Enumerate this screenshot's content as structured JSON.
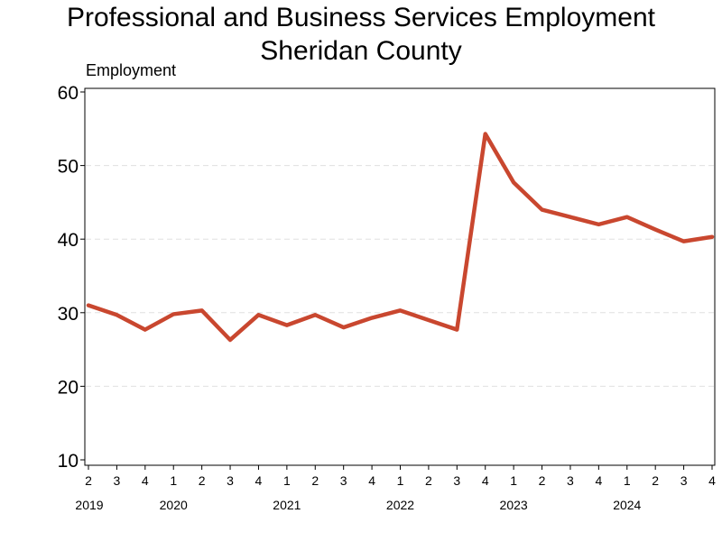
{
  "chart_data": {
    "type": "line",
    "title": "Professional and Business Services Employment",
    "subtitle": "Sheridan County",
    "ylabel": "Employment",
    "ylim": [
      10,
      60
    ],
    "yticks": [
      10,
      20,
      30,
      40,
      50,
      60
    ],
    "grid": true,
    "line_color": "#c9472f",
    "grid_color": "#e0e0e0",
    "categories": [
      "2",
      "3",
      "4",
      "1",
      "2",
      "3",
      "4",
      "1",
      "2",
      "3",
      "4",
      "1",
      "2",
      "3",
      "4",
      "1",
      "2",
      "3",
      "4",
      "1",
      "2",
      "3",
      "4"
    ],
    "years": [
      {
        "label": "2019",
        "quarter_index": 0
      },
      {
        "label": "2020",
        "quarter_index": 3
      },
      {
        "label": "2021",
        "quarter_index": 7
      },
      {
        "label": "2022",
        "quarter_index": 11
      },
      {
        "label": "2023",
        "quarter_index": 15
      },
      {
        "label": "2024",
        "quarter_index": 19
      }
    ],
    "series": [
      {
        "values": [
          31,
          29.7,
          27.7,
          29.8,
          30.3,
          26.3,
          29.7,
          28.3,
          29.7,
          28,
          29.3,
          30.3,
          29,
          27.7,
          54.3,
          47.7,
          44,
          43,
          42,
          43,
          41.3,
          39.7,
          40.3
        ]
      }
    ]
  }
}
